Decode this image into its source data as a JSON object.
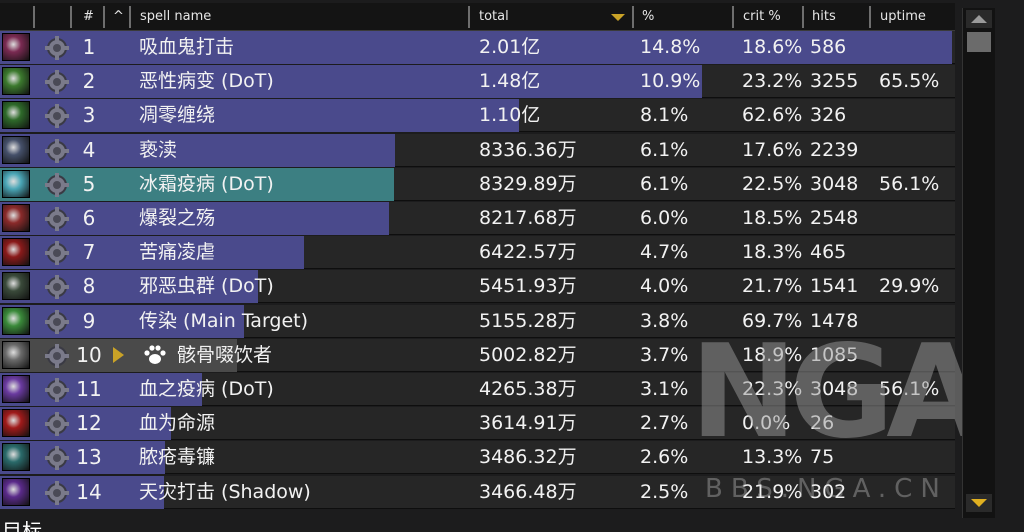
{
  "header": {
    "col_rank": "#",
    "col_caret": "^",
    "col_spell": "spell name",
    "col_total": "total",
    "col_pct": "%",
    "col_crit": "crit %",
    "col_hits": "hits",
    "col_uptime": "uptime"
  },
  "rows": [
    {
      "rank": "1",
      "name": "吸血鬼打击",
      "total": "2.01亿",
      "pct": "14.8%",
      "crit": "18.6%",
      "hits": "586",
      "uptime": "",
      "bar": 1.0,
      "bar_color": "#4a4a8c",
      "icon_color": "#7a2a52"
    },
    {
      "rank": "2",
      "name": "恶性病变 (DoT)",
      "total": "1.48亿",
      "pct": "10.9%",
      "crit": "23.2%",
      "hits": "3255",
      "uptime": "65.5%",
      "bar": 0.737,
      "bar_color": "#4a4a8c",
      "icon_color": "#3c7a2e"
    },
    {
      "rank": "3",
      "name": "凋零缠绕",
      "total": "1.10亿",
      "pct": "8.1%",
      "crit": "62.6%",
      "hits": "326",
      "uptime": "",
      "bar": 0.545,
      "bar_color": "#4a4a8c",
      "icon_color": "#2e6a2a"
    },
    {
      "rank": "4",
      "name": "亵渎",
      "total": "8336.36万",
      "pct": "6.1%",
      "crit": "17.6%",
      "hits": "2239",
      "uptime": "",
      "bar": 0.415,
      "bar_color": "#4a4a8c",
      "icon_color": "#45506a"
    },
    {
      "rank": "5",
      "name": "冰霜疫病 (DoT)",
      "total": "8329.89万",
      "pct": "6.1%",
      "crit": "22.5%",
      "hits": "3048",
      "uptime": "56.1%",
      "bar": 0.414,
      "bar_color": "#3c7f82",
      "icon_color": "#4aa6b6"
    },
    {
      "rank": "6",
      "name": "爆裂之殇",
      "total": "8217.68万",
      "pct": "6.0%",
      "crit": "18.5%",
      "hits": "2548",
      "uptime": "",
      "bar": 0.409,
      "bar_color": "#4a4a8c",
      "icon_color": "#8a2a2a"
    },
    {
      "rank": "7",
      "name": "苦痛凌虐",
      "total": "6422.57万",
      "pct": "4.7%",
      "crit": "18.3%",
      "hits": "465",
      "uptime": "",
      "bar": 0.319,
      "bar_color": "#4a4a8c",
      "icon_color": "#8a1a1a"
    },
    {
      "rank": "8",
      "name": "邪恶虫群 (DoT)",
      "total": "5451.93万",
      "pct": "4.0%",
      "crit": "21.7%",
      "hits": "1541",
      "uptime": "29.9%",
      "bar": 0.271,
      "bar_color": "#4a4a8c",
      "icon_color": "#3a4a3a"
    },
    {
      "rank": "9",
      "name": "传染 (Main Target)",
      "total": "5155.28万",
      "pct": "3.8%",
      "crit": "69.7%",
      "hits": "1478",
      "uptime": "",
      "bar": 0.256,
      "bar_color": "#4a4a8c",
      "icon_color": "#3a8a3a"
    },
    {
      "rank": "10",
      "name": "骸骨啜饮者",
      "total": "5002.82万",
      "pct": "3.7%",
      "crit": "18.9%",
      "hits": "1085",
      "uptime": "",
      "bar": 0.249,
      "bar_color": "#4a4a4a",
      "icon_color": "#6a6a6a",
      "has_arrow": true,
      "has_paw": true
    },
    {
      "rank": "11",
      "name": "血之疫病 (DoT)",
      "total": "4265.38万",
      "pct": "3.1%",
      "crit": "22.3%",
      "hits": "3048",
      "uptime": "56.1%",
      "bar": 0.212,
      "bar_color": "#4a4a8c",
      "icon_color": "#6a3aa0"
    },
    {
      "rank": "12",
      "name": "血为命源",
      "total": "3614.91万",
      "pct": "2.7%",
      "crit": "0.0%",
      "hits": "26",
      "uptime": "",
      "bar": 0.18,
      "bar_color": "#4a4a8c",
      "icon_color": "#a01a1a"
    },
    {
      "rank": "13",
      "name": "脓疮毒镰",
      "total": "3486.32万",
      "pct": "2.6%",
      "crit": "13.3%",
      "hits": "75",
      "uptime": "",
      "bar": 0.173,
      "bar_color": "#4a4a8c",
      "icon_color": "#2a6a6a"
    },
    {
      "rank": "14",
      "name": "天灾打击 (Shadow)",
      "total": "3466.48万",
      "pct": "2.5%",
      "crit": "21.9%",
      "hits": "302",
      "uptime": "",
      "bar": 0.172,
      "bar_color": "#4a4a8c",
      "icon_color": "#5a2a8a"
    }
  ],
  "watermark": {
    "url": "BBS.NGA.CN"
  },
  "footer": {
    "text": "目标"
  },
  "colors": {
    "accent": "#c9a227",
    "bar": "#4a4a8c",
    "bar_frost": "#3c7f82"
  }
}
